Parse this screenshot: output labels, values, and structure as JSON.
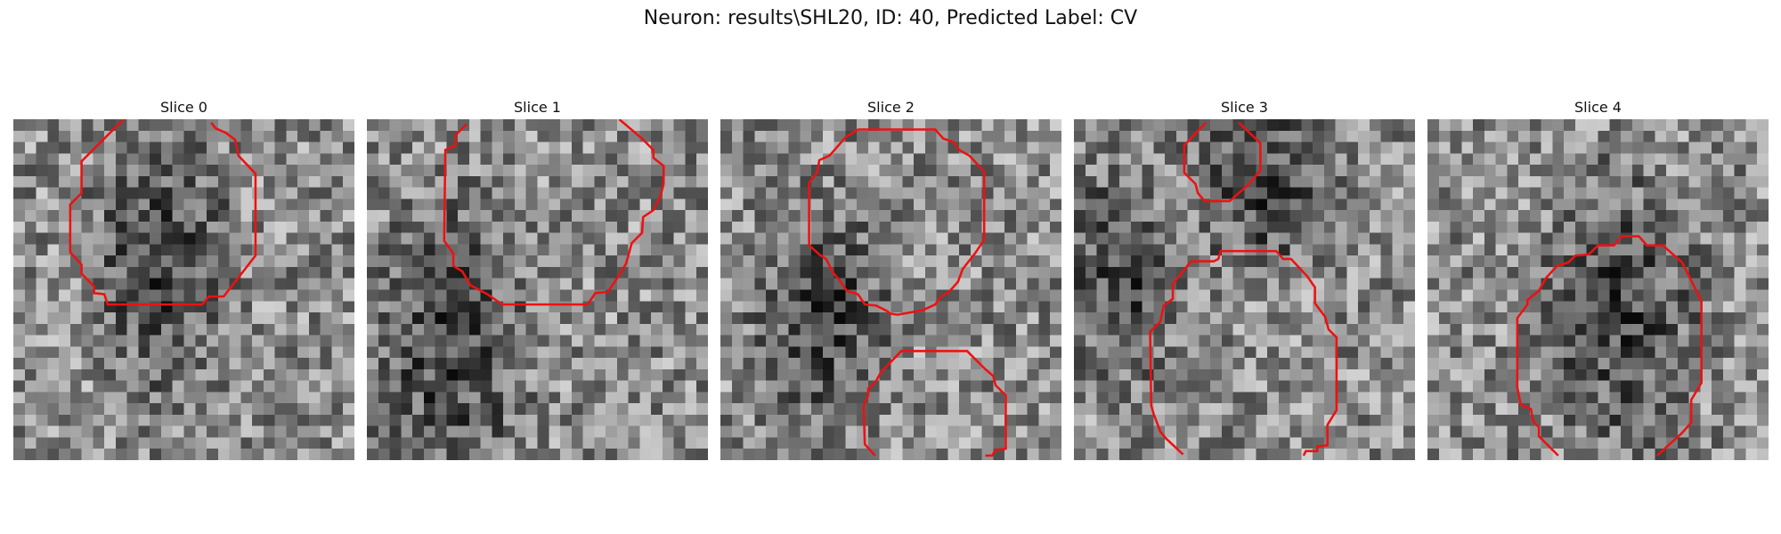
{
  "figure": {
    "title": "Neuron: results\\SHL20, ID: 40, Predicted Label: CV"
  },
  "panels": [
    {
      "title": "Slice 0",
      "seed": 11,
      "dark_zones": [
        [
          0.42,
          0.4,
          0.28,
          0.55
        ]
      ]
    },
    {
      "title": "Slice 1",
      "seed": 23,
      "dark_zones": [
        [
          0.22,
          0.65,
          0.3,
          0.6
        ]
      ]
    },
    {
      "title": "Slice 2",
      "seed": 37,
      "dark_zones": [
        [
          0.28,
          0.55,
          0.28,
          0.45
        ]
      ]
    },
    {
      "title": "Slice 3",
      "seed": 49,
      "dark_zones": [
        [
          0.12,
          0.45,
          0.22,
          0.45
        ],
        [
          0.55,
          0.18,
          0.3,
          0.35
        ]
      ]
    },
    {
      "title": "Slice 4",
      "seed": 61,
      "dark_zones": [
        [
          0.55,
          0.55,
          0.3,
          0.55
        ]
      ]
    }
  ],
  "style": {
    "contour_color": "#ee1111"
  }
}
